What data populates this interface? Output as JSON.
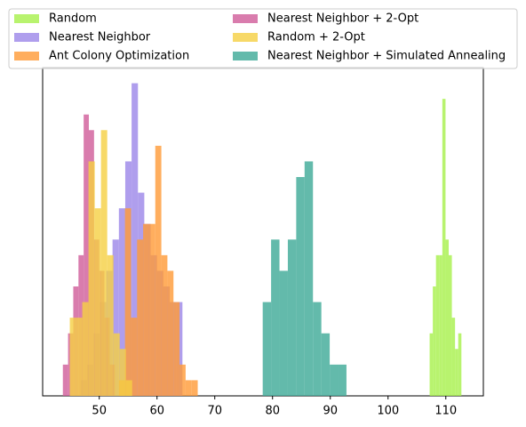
{
  "chart_data": {
    "type": "histogram",
    "xlim": [
      40.2,
      116.5
    ],
    "ylim": [
      0,
      21
    ],
    "xticks": [
      50,
      60,
      70,
      80,
      90,
      100,
      110
    ],
    "legend": "upper center",
    "opacity": 0.8,
    "series": [
      {
        "name": "Random",
        "color": "#a6f04a",
        "bins": [
          107.2,
          107.75,
          108.3,
          108.85,
          109.4,
          109.95,
          110.5,
          111.05,
          111.6,
          112.15,
          112.7
        ],
        "values": [
          4,
          7,
          9,
          9,
          19,
          10,
          9,
          5,
          3,
          4
        ]
      },
      {
        "name": "Nearest Neighbor",
        "color": "#9b86e8",
        "bins": [
          46.8,
          47.9,
          49.0,
          50.1,
          51.2,
          52.3,
          53.4,
          54.5,
          55.6,
          56.7,
          57.8,
          58.9,
          60.0,
          61.1,
          62.2,
          63.3,
          64.4
        ],
        "values": [
          1,
          2,
          4,
          6,
          8,
          10,
          12,
          15,
          20,
          13,
          11,
          9,
          8,
          7,
          6,
          6
        ]
      },
      {
        "name": "Ant Colony Optimization",
        "color": "#ff9a36",
        "bins": [
          53.4,
          54.45,
          55.5,
          56.55,
          57.6,
          58.65,
          59.7,
          60.75,
          61.8,
          62.85,
          63.9,
          64.95,
          66.0,
          67.05
        ],
        "values": [
          1,
          12,
          5,
          10,
          11,
          11,
          16,
          9,
          8,
          6,
          2,
          1,
          1
        ]
      },
      {
        "name": "Nearest Neighbor + 2-Opt",
        "color": "#cf5b98",
        "bins": [
          43.7,
          44.6,
          45.5,
          46.4,
          47.3,
          48.2,
          49.1,
          50.0,
          50.9,
          51.8,
          52.7
        ],
        "values": [
          2,
          4,
          7,
          9,
          18,
          17,
          10,
          8,
          5,
          2
        ]
      },
      {
        "name": "Random + 2-Opt",
        "color": "#f5cf42",
        "bins": [
          44.9,
          45.98,
          47.06,
          48.14,
          49.22,
          50.3,
          51.38,
          52.46,
          53.54,
          54.62,
          55.7
        ],
        "values": [
          5,
          5,
          6,
          15,
          12,
          17,
          9,
          4,
          3,
          1
        ]
      },
      {
        "name": "Nearest Neighbor + Simulated Annealing",
        "color": "#3ca996",
        "bins": [
          78.3,
          79.75,
          81.2,
          82.65,
          84.1,
          85.55,
          87.0,
          88.45,
          89.9,
          91.35,
          92.8
        ],
        "values": [
          6,
          10,
          8,
          10,
          14,
          15,
          6,
          4,
          2,
          2
        ]
      }
    ]
  }
}
